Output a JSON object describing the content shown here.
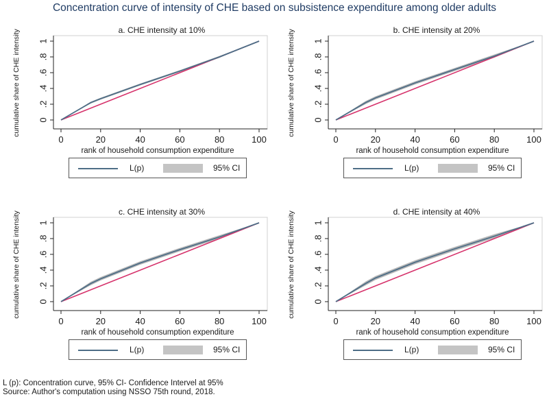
{
  "title": "Concentration curve of intensity of CHE based on subsistence expenditure among older adults",
  "legend": {
    "line_label": "L(p)",
    "ci_label": "95% CI"
  },
  "footnote": {
    "line1": "L (p): Concentration curve, 95% CI- Confidence Intervel at 95%",
    "line2": "Source: Author's computation using NSSO 75th round, 2018."
  },
  "colors": {
    "curve": "#4d6d86",
    "ci_band": "#b8b8b8",
    "equality_line": "#d6336c",
    "title": "#1f3b63"
  },
  "chart_data": [
    {
      "type": "line",
      "title": "a. CHE intensity at 10%",
      "xlabel": "rank of household consumption expenditure",
      "ylabel": "cumulative share of CHE intensity",
      "xlim": [
        0,
        100
      ],
      "ylim": [
        0,
        1
      ],
      "xticks": [
        "0",
        "20",
        "40",
        "60",
        "80",
        "100"
      ],
      "yticks": [
        "0",
        ".2",
        ".4",
        ".6",
        ".8",
        "1"
      ],
      "grid": false,
      "series": [
        {
          "name": "L(p)",
          "x": [
            0,
            15,
            20,
            40,
            60,
            80,
            100
          ],
          "y": [
            0,
            0.22,
            0.27,
            0.45,
            0.62,
            0.8,
            1.0
          ],
          "ci": 0.012
        },
        {
          "x": [
            0,
            100
          ],
          "y": [
            0,
            1
          ]
        }
      ]
    },
    {
      "type": "line",
      "title": "b. CHE intensity at 20%",
      "xlabel": "rank of household consumption expenditure",
      "ylabel": "cumulative share of CHE intensity",
      "xlim": [
        0,
        100
      ],
      "ylim": [
        0,
        1
      ],
      "xticks": [
        "0",
        "20",
        "40",
        "60",
        "80",
        "100"
      ],
      "yticks": [
        "0",
        ".2",
        ".4",
        ".6",
        ".8",
        "1"
      ],
      "grid": false,
      "series": [
        {
          "name": "L(p)",
          "x": [
            0,
            15,
            20,
            40,
            60,
            80,
            100
          ],
          "y": [
            0,
            0.22,
            0.28,
            0.47,
            0.64,
            0.81,
            1.0
          ],
          "ci": 0.02
        },
        {
          "x": [
            0,
            100
          ],
          "y": [
            0,
            1
          ]
        }
      ]
    },
    {
      "type": "line",
      "title": "c. CHE intensity at 30%",
      "xlabel": "rank of household consumption expenditure",
      "ylabel": "cumulative share of CHE intensity",
      "xlim": [
        0,
        100
      ],
      "ylim": [
        0,
        1
      ],
      "xticks": [
        "0",
        "20",
        "40",
        "60",
        "80",
        "100"
      ],
      "yticks": [
        "0",
        ".2",
        ".4",
        ".6",
        ".8",
        "1"
      ],
      "grid": false,
      "series": [
        {
          "name": "L(p)",
          "x": [
            0,
            15,
            20,
            40,
            60,
            80,
            100
          ],
          "y": [
            0,
            0.23,
            0.29,
            0.49,
            0.66,
            0.82,
            1.0
          ],
          "ci": 0.022
        },
        {
          "x": [
            0,
            100
          ],
          "y": [
            0,
            1
          ]
        }
      ]
    },
    {
      "type": "line",
      "title": "d. CHE intensity at 40%",
      "xlabel": "rank of household consumption expenditure",
      "ylabel": "cumulative share of CHE intensity",
      "xlim": [
        0,
        100
      ],
      "ylim": [
        0,
        1
      ],
      "xticks": [
        "0",
        "20",
        "40",
        "60",
        "80",
        "100"
      ],
      "yticks": [
        "0",
        ".2",
        ".4",
        ".6",
        ".8",
        "1"
      ],
      "grid": false,
      "series": [
        {
          "name": "L(p)",
          "x": [
            0,
            15,
            20,
            40,
            60,
            80,
            100
          ],
          "y": [
            0,
            0.23,
            0.3,
            0.5,
            0.67,
            0.83,
            1.0
          ],
          "ci": 0.025
        },
        {
          "x": [
            0,
            100
          ],
          "y": [
            0,
            1
          ]
        }
      ]
    }
  ]
}
